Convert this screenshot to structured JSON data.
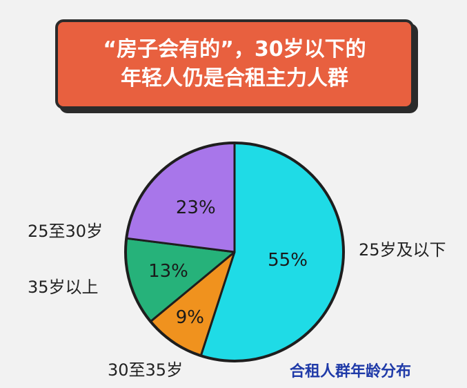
{
  "title": {
    "line1": "“房子会有的”，30岁以下的",
    "line2": "年轻人仍是合租主力人群"
  },
  "caption": "合租人群年龄分布",
  "chart_data": {
    "type": "pie",
    "slices": [
      {
        "label": "25岁及以下",
        "value": 55,
        "display": "55%",
        "color": "#1fdbe6"
      },
      {
        "label": "30至35岁",
        "value": 9,
        "display": "9%",
        "color": "#f0921e"
      },
      {
        "label": "35岁以上",
        "value": 13,
        "display": "13%",
        "color": "#26b27a"
      },
      {
        "label": "25至30岁",
        "value": 23,
        "display": "23%",
        "color": "#a876ea"
      }
    ],
    "start": "top",
    "direction": "clockwise"
  }
}
